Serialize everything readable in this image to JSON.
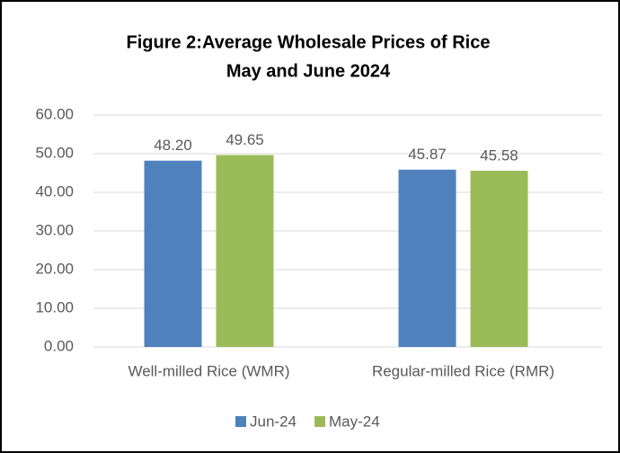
{
  "chart_data": {
    "type": "bar",
    "title": "Figure 2:Average Wholesale Prices of Rice",
    "subtitle": "May and June 2024",
    "categories": [
      "Well-milled Rice (WMR)",
      "Regular-milled Rice (RMR)"
    ],
    "series": [
      {
        "name": "Jun-24",
        "color": "#4f81bd",
        "values": [
          48.2,
          45.87
        ],
        "value_labels": [
          "48.20",
          "45.87"
        ]
      },
      {
        "name": "May-24",
        "color": "#9bbb59",
        "values": [
          49.65,
          45.58
        ],
        "value_labels": [
          "49.65",
          "45.58"
        ]
      }
    ],
    "ylim": [
      0,
      60
    ],
    "yticks": [
      {
        "value": 0,
        "label": "0.00"
      },
      {
        "value": 10,
        "label": "10.00"
      },
      {
        "value": 20,
        "label": "20.00"
      },
      {
        "value": 30,
        "label": "30.00"
      },
      {
        "value": 40,
        "label": "40.00"
      },
      {
        "value": 50,
        "label": "50.00"
      },
      {
        "value": 60,
        "label": "60.00"
      }
    ],
    "grid": true,
    "legend": "bottom"
  }
}
